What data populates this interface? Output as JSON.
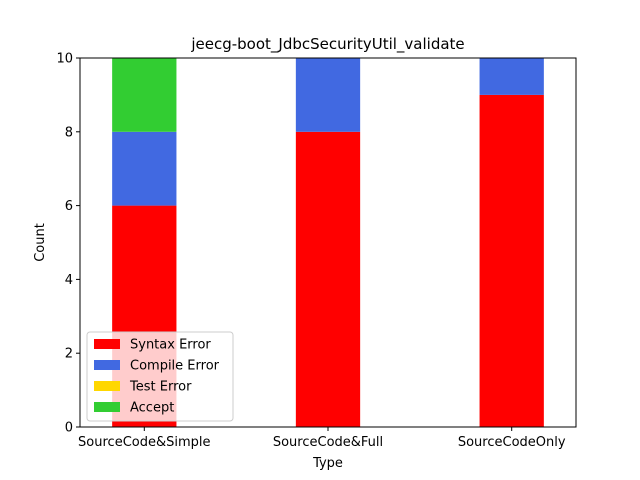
{
  "chart_data": {
    "type": "bar",
    "stacked": true,
    "title": "jeecg-boot_JdbcSecurityUtil_validate",
    "xlabel": "Type",
    "ylabel": "Count",
    "ylim": [
      0,
      10
    ],
    "yticks": [
      0,
      2,
      4,
      6,
      8,
      10
    ],
    "categories": [
      "SourceCode&Simple",
      "SourceCode&Full",
      "SourceCodeOnly"
    ],
    "series": [
      {
        "name": "Syntax Error",
        "color": "#ff0000",
        "values": [
          6,
          8,
          9
        ]
      },
      {
        "name": "Compile Error",
        "color": "#4169e1",
        "values": [
          2,
          2,
          1
        ]
      },
      {
        "name": "Test Error",
        "color": "#ffd700",
        "values": [
          0,
          0,
          0
        ]
      },
      {
        "name": "Accept",
        "color": "#32cd32",
        "values": [
          2,
          0,
          0
        ]
      }
    ],
    "legend_position": "lower-left",
    "grid": false
  }
}
